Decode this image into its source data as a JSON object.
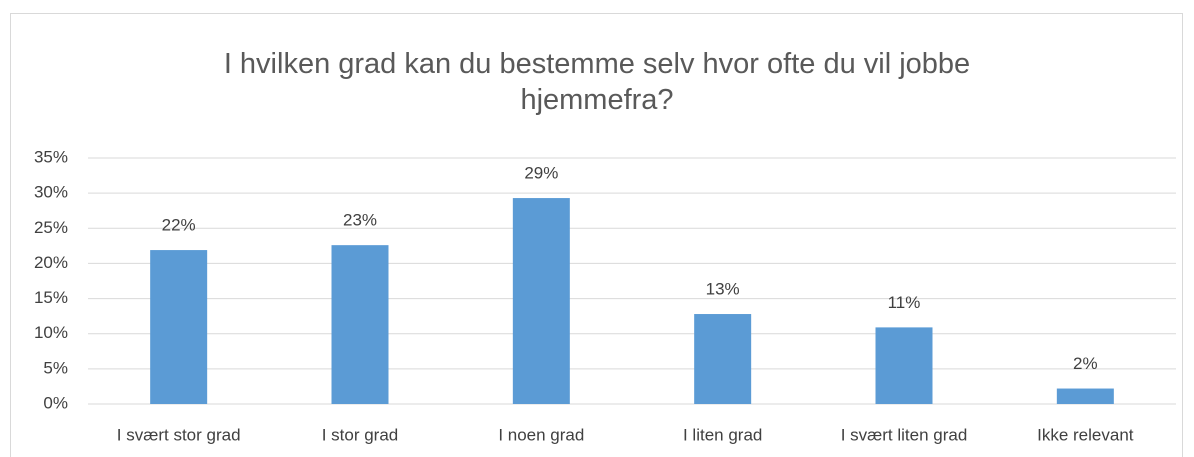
{
  "chart_data": {
    "type": "bar",
    "title": "I hvilken grad kan du bestemme selv hvor ofte du vil jobbe hjemmefra?",
    "categories": [
      "I svært stor grad",
      "I stor grad",
      "I noen grad",
      "I liten grad",
      "I svært liten grad",
      "Ikke relevant"
    ],
    "values": [
      21.9,
      22.6,
      29.3,
      12.8,
      10.9,
      2.2
    ],
    "value_labels": [
      "22%",
      "23%",
      "29%",
      "13%",
      "11%",
      "2%"
    ],
    "color": "#5b9bd5",
    "ylim": [
      0,
      35
    ],
    "yticks": [
      {
        "value": 0,
        "label": "0%"
      },
      {
        "value": 5,
        "label": "5%"
      },
      {
        "value": 10,
        "label": "10%"
      },
      {
        "value": 15,
        "label": "15%"
      },
      {
        "value": 20,
        "label": "20%"
      },
      {
        "value": 25,
        "label": "25%"
      },
      {
        "value": 30,
        "label": "30%"
      },
      {
        "value": 35,
        "label": "35%"
      }
    ],
    "grid": true
  }
}
